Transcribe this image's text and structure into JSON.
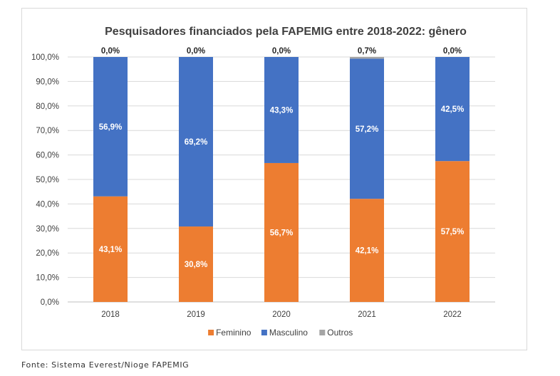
{
  "chart_data": {
    "type": "bar",
    "stacked": true,
    "title": "Pesquisadores financiados pela FAPEMIG entre 2018-2022: gênero",
    "xlabel": "",
    "ylabel": "",
    "categories": [
      "2018",
      "2019",
      "2020",
      "2021",
      "2022"
    ],
    "ylim": [
      0,
      100
    ],
    "y_ticks": [
      "0,0%",
      "10,0%",
      "20,0%",
      "30,0%",
      "40,0%",
      "50,0%",
      "60,0%",
      "70,0%",
      "80,0%",
      "90,0%",
      "100,0%"
    ],
    "grid": "horizontal",
    "legend_position": "bottom",
    "series": [
      {
        "name": "Feminino",
        "color": "#ED7D31",
        "values": [
          43.1,
          30.8,
          56.7,
          42.1,
          57.5
        ],
        "labels": [
          "43,1%",
          "30,8%",
          "56,7%",
          "42,1%",
          "57,5%"
        ]
      },
      {
        "name": "Masculino",
        "color": "#4472C4",
        "values": [
          56.9,
          69.2,
          43.3,
          57.2,
          42.5
        ],
        "labels": [
          "56,9%",
          "69,2%",
          "43,3%",
          "57,2%",
          "42,5%"
        ]
      },
      {
        "name": "Outros",
        "color": "#A5A5A5",
        "values": [
          0.0,
          0.0,
          0.0,
          0.7,
          0.0
        ],
        "labels": [
          "0,0%",
          "0,0%",
          "0,0%",
          "0,7%",
          "0,0%"
        ]
      }
    ]
  },
  "source_note": "Fonte: Sistema Everest/Nioge FAPEMIG"
}
